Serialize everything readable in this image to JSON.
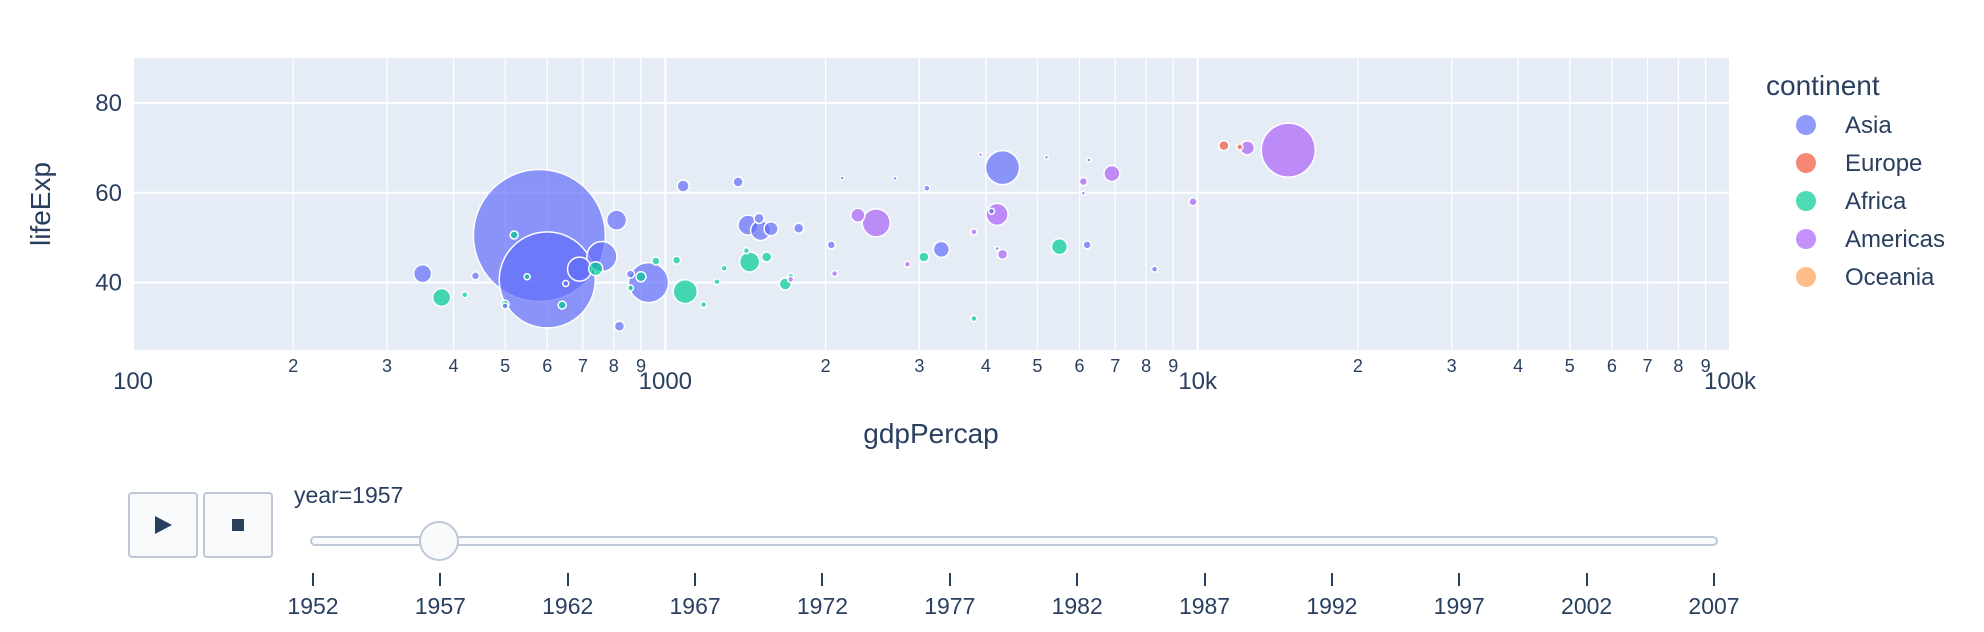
{
  "chart_data": {
    "type": "scatter",
    "xlabel": "gdpPercap",
    "ylabel": "lifeExp",
    "x_scale": "log",
    "xlim": [
      100,
      100000
    ],
    "ylim": [
      25,
      90
    ],
    "x_tick_labels": [
      "100",
      "2",
      "3",
      "4",
      "5",
      "6",
      "7",
      "8",
      "9",
      "1000",
      "2",
      "3",
      "4",
      "5",
      "6",
      "7",
      "8",
      "9",
      "10k",
      "2",
      "3",
      "4",
      "5",
      "6",
      "7",
      "8",
      "9",
      "100k"
    ],
    "y_tick_labels": [
      "40",
      "60",
      "80"
    ],
    "grid": true,
    "legend_title": "continent",
    "legend_position": "right",
    "series": [
      {
        "name": "Asia",
        "color": "#636efa",
        "points": [
          [
            580,
            50.5,
            66
          ],
          [
            600,
            40.6,
            48
          ],
          [
            930,
            40,
            20
          ],
          [
            760,
            45.8,
            15
          ],
          [
            4300,
            65.6,
            17
          ],
          [
            350,
            42,
            9
          ],
          [
            690,
            43,
            12
          ],
          [
            810,
            53.9,
            10
          ],
          [
            1430,
            52.8,
            10
          ],
          [
            1510,
            51.6,
            10
          ],
          [
            3300,
            47.4,
            8
          ],
          [
            1580,
            52,
            7
          ],
          [
            1370,
            62.4,
            5
          ],
          [
            1080,
            61.5,
            6
          ],
          [
            1780,
            52.1,
            5
          ],
          [
            6200,
            48.4,
            4
          ],
          [
            8300,
            43,
            3
          ],
          [
            4100,
            55.9,
            3
          ],
          [
            820,
            30.3,
            5
          ],
          [
            440,
            41.5,
            4
          ],
          [
            860,
            41.9,
            4
          ],
          [
            2050,
            48.4,
            4
          ],
          [
            3100,
            61,
            3
          ],
          [
            5200,
            67.9,
            2
          ],
          [
            6250,
            67.3,
            2
          ],
          [
            1500,
            54.3,
            5
          ],
          [
            650,
            39.8,
            3
          ],
          [
            500,
            34.8,
            3
          ],
          [
            6100,
            59.9,
            2
          ],
          [
            4200,
            47.6,
            2
          ],
          [
            2150,
            63.3,
            2
          ],
          [
            2700,
            63.2,
            2
          ]
        ]
      },
      {
        "name": "Europe",
        "color": "#EF553B",
        "points": [
          [
            11200,
            70.5,
            5
          ],
          [
            12000,
            70.2,
            3
          ]
        ]
      },
      {
        "name": "Africa",
        "color": "#00cc96",
        "points": [
          [
            1090,
            38,
            12
          ],
          [
            1440,
            44.6,
            10
          ],
          [
            5500,
            48,
            8
          ],
          [
            380,
            36.7,
            9
          ],
          [
            740,
            43.1,
            7
          ],
          [
            1680,
            39.7,
            6
          ],
          [
            500,
            35.2,
            4
          ],
          [
            640,
            35,
            4
          ],
          [
            3060,
            45.7,
            5
          ],
          [
            900,
            41.3,
            5
          ],
          [
            520,
            50.6,
            4
          ],
          [
            1550,
            45.7,
            5
          ],
          [
            1050,
            45,
            4
          ],
          [
            550,
            41.3,
            3
          ],
          [
            960,
            44.8,
            4
          ],
          [
            1290,
            43.2,
            3
          ],
          [
            1180,
            35.1,
            3
          ],
          [
            3800,
            32,
            3
          ],
          [
            420,
            37.3,
            3
          ],
          [
            1420,
            47.1,
            3
          ],
          [
            1720,
            41.4,
            3
          ],
          [
            1250,
            40.2,
            3
          ],
          [
            860,
            38.8,
            3
          ]
        ]
      },
      {
        "name": "Americas",
        "color": "#ab63fa",
        "points": [
          [
            14800,
            69.5,
            27
          ],
          [
            2490,
            53.3,
            14
          ],
          [
            4200,
            55.2,
            11
          ],
          [
            6900,
            64.3,
            8
          ],
          [
            2300,
            55,
            7
          ],
          [
            12400,
            70,
            7
          ],
          [
            4300,
            46.3,
            5
          ],
          [
            6100,
            62.5,
            4
          ],
          [
            9800,
            58,
            4
          ],
          [
            3800,
            51.3,
            3
          ],
          [
            2080,
            42,
            3
          ],
          [
            2850,
            44.1,
            3
          ],
          [
            1720,
            40.7,
            3
          ],
          [
            3910,
            68.5,
            2
          ]
        ]
      },
      {
        "name": "Oceania",
        "color": "#FFA15A",
        "points": []
      }
    ],
    "frame_label": "year=1957",
    "frame_steps": [
      "1952",
      "1957",
      "1962",
      "1967",
      "1972",
      "1977",
      "1982",
      "1987",
      "1992",
      "1997",
      "2002",
      "2007"
    ],
    "active_frame": "1957"
  },
  "controls": {
    "play_icon": "play-icon",
    "stop_icon": "stop-icon"
  }
}
